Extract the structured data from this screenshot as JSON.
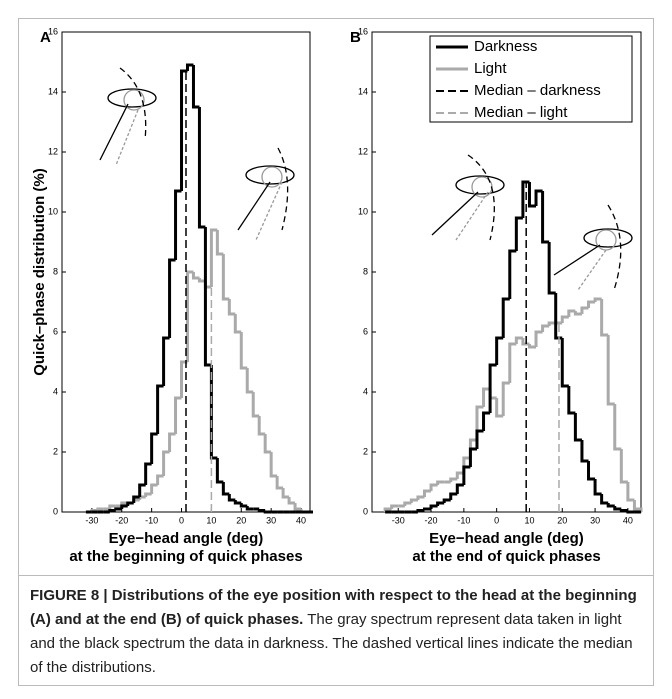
{
  "chart_data": [
    {
      "type": "step-histogram",
      "panel": "A",
      "ylabel": "Quick–phase distribution (%)",
      "xlabel": [
        "Eye−head angle (deg)",
        "at the beginning of quick phases"
      ],
      "bins": [
        -32,
        -30,
        -28,
        -26,
        -24,
        -22,
        -20,
        -18,
        -16,
        -14,
        -12,
        -10,
        -8,
        -6,
        -4,
        -2,
        0,
        2,
        4,
        6,
        8,
        10,
        12,
        14,
        16,
        18,
        20,
        22,
        24,
        26,
        28,
        30,
        32,
        34,
        36,
        38,
        40,
        42,
        44
      ],
      "series": [
        {
          "name": "Darkness",
          "color": "#000000",
          "values": [
            0,
            0,
            0,
            0,
            0.05,
            0.1,
            0.2,
            0.3,
            0.5,
            0.9,
            1.6,
            2.6,
            4.2,
            5.8,
            8.4,
            10.7,
            14.7,
            14.9,
            13.5,
            9.5,
            4.9,
            1.8,
            1.0,
            0.6,
            0.4,
            0.3,
            0.2,
            0.1,
            0.1,
            0.05,
            0,
            0,
            0,
            0,
            0,
            0,
            0,
            0
          ]
        },
        {
          "name": "Light",
          "color": "#aaaaaa",
          "values": [
            0,
            0.05,
            0.1,
            0.1,
            0.2,
            0.2,
            0.3,
            0.3,
            0.4,
            0.5,
            0.6,
            0.9,
            1.2,
            2.0,
            2.6,
            3.8,
            5.0,
            8.0,
            7.8,
            7.7,
            7.5,
            9.4,
            8.6,
            7.1,
            6.6,
            6.0,
            4.8,
            4.0,
            3.2,
            2.6,
            2.0,
            1.2,
            0.8,
            0.5,
            0.3,
            0.1,
            0,
            0
          ]
        }
      ],
      "medians": [
        {
          "name": "Median – darkness",
          "color": "#000000",
          "value": 1.5
        },
        {
          "name": "Median – light",
          "color": "#aaaaaa",
          "value": 10
        }
      ],
      "legend": false,
      "xlim": [
        -40,
        43
      ],
      "ylim": [
        0,
        16
      ],
      "xticks": [
        -30,
        -20,
        -10,
        0,
        10,
        20,
        30,
        40
      ],
      "yticks": [
        0,
        2,
        4,
        6,
        8,
        10,
        12,
        14,
        16
      ]
    },
    {
      "type": "step-histogram",
      "panel": "B",
      "xlabel": [
        "Eye−head angle (deg)",
        "at the end of quick phases"
      ],
      "bins": [
        -34,
        -32,
        -30,
        -28,
        -26,
        -24,
        -22,
        -20,
        -18,
        -16,
        -14,
        -12,
        -10,
        -8,
        -6,
        -4,
        -2,
        0,
        2,
        4,
        6,
        8,
        10,
        12,
        14,
        16,
        18,
        20,
        22,
        24,
        26,
        28,
        30,
        32,
        34,
        36,
        38,
        40,
        42,
        44
      ],
      "series": [
        {
          "name": "Darkness",
          "color": "#000000",
          "values": [
            0,
            0,
            0,
            0,
            0,
            0.05,
            0.1,
            0.2,
            0.3,
            0.4,
            0.6,
            0.9,
            1.5,
            2.1,
            2.7,
            3.3,
            4.9,
            5.8,
            7.1,
            8.7,
            9.8,
            11.0,
            10.2,
            10.7,
            9.0,
            7.3,
            5.8,
            4.2,
            3.3,
            2.4,
            1.7,
            1.1,
            0.6,
            0.3,
            0.2,
            0.1,
            0.05,
            0,
            0
          ]
        },
        {
          "name": "Light",
          "color": "#aaaaaa",
          "values": [
            0.1,
            0.2,
            0.2,
            0.3,
            0.4,
            0.5,
            0.7,
            0.9,
            1.0,
            1.0,
            1.1,
            1.3,
            1.8,
            2.4,
            3.5,
            4.1,
            3.8,
            3.2,
            4.3,
            5.6,
            5.8,
            5.6,
            5.5,
            6.0,
            6.2,
            6.3,
            6.3,
            6.5,
            6.7,
            6.6,
            6.8,
            7.0,
            7.1,
            5.9,
            3.6,
            2.1,
            1.0,
            0.4,
            0.1
          ]
        }
      ],
      "medians": [
        {
          "name": "Median – darkness",
          "color": "#000000",
          "value": 9
        },
        {
          "name": "Median – light",
          "color": "#aaaaaa",
          "value": 19
        }
      ],
      "legend": true,
      "xlim": [
        -38,
        44
      ],
      "ylim": [
        0,
        16
      ],
      "xticks": [
        -30,
        -20,
        -10,
        0,
        10,
        20,
        30,
        40
      ],
      "yticks": [
        0,
        2,
        4,
        6,
        8,
        10,
        12,
        14,
        16
      ]
    }
  ],
  "caption": {
    "title": "FIGURE 8 | Distributions of the eye position with respect to the head at the beginning (A) and at the end (B) of quick phases.",
    "text": "The gray spectrum represent data taken in light and the black spectrum the data in darkness. The dashed vertical lines indicate the median of the distributions."
  }
}
